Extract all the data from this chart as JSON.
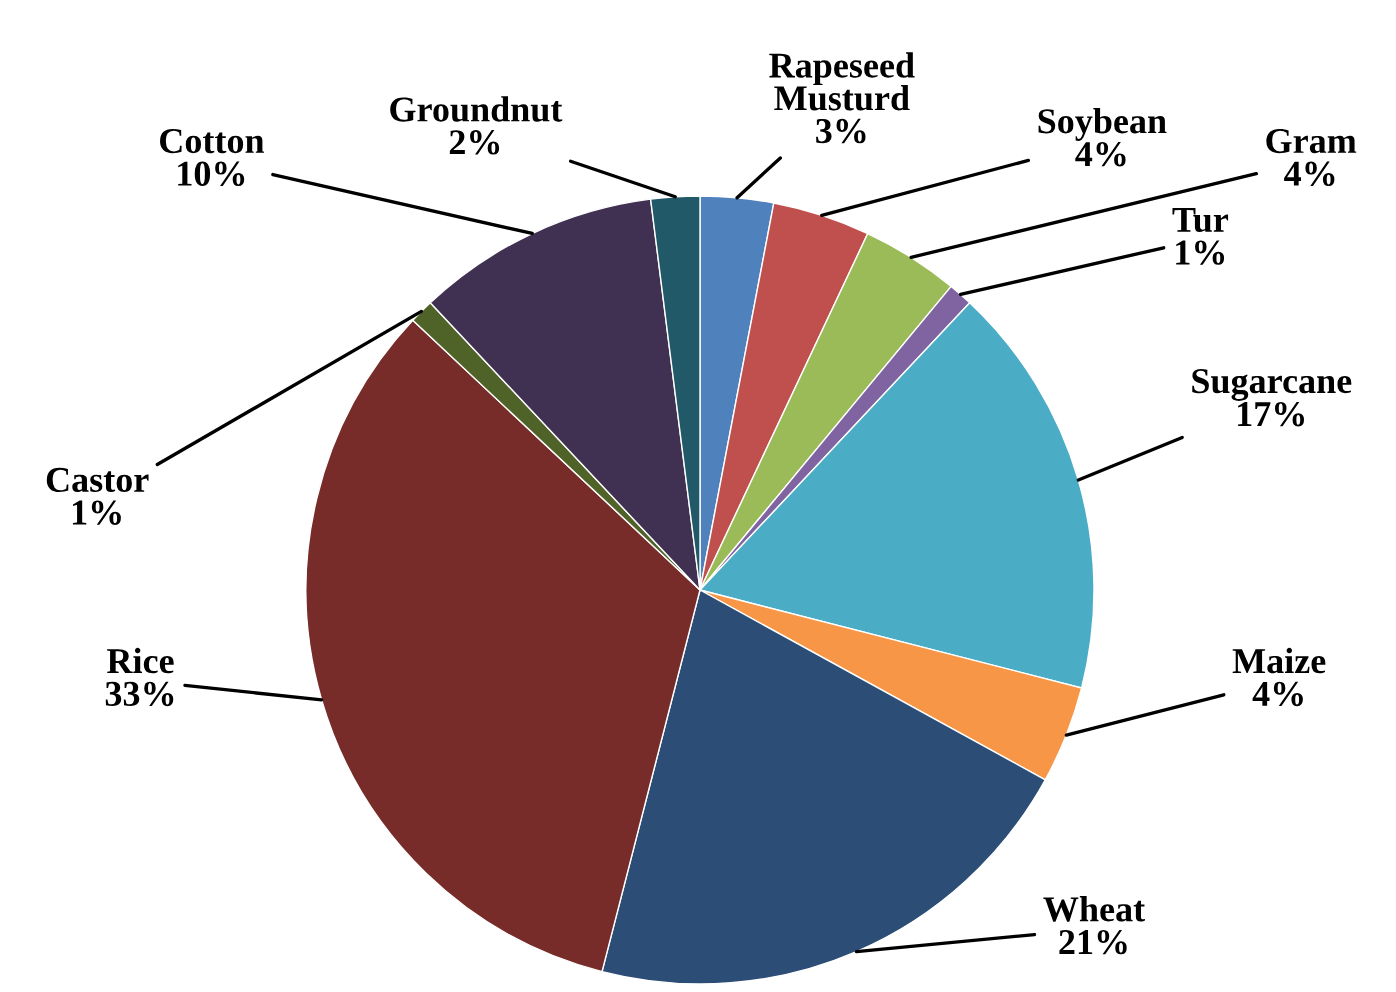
{
  "chart_data": {
    "type": "pie",
    "categories": [
      "Rapeseed\nMusturd",
      "Soybean",
      "Gram",
      "Tur",
      "Sugarcane",
      "Maize",
      "Wheat",
      "Rice",
      "Castor",
      "Cotton",
      "Groundnut"
    ],
    "values": [
      3,
      4,
      4,
      1,
      17,
      4,
      21,
      33,
      1,
      10,
      2
    ],
    "value_labels": [
      "3%",
      "4%",
      "4%",
      "1%",
      "17%",
      "4%",
      "21%",
      "33%",
      "1%",
      "10%",
      "2%"
    ],
    "colors": [
      "#4f81bd",
      "#c0504d",
      "#9bbb59",
      "#8064a2",
      "#4bacc6",
      "#f79646",
      "#2c4d75",
      "#772c2a",
      "#4f6228",
      "#403152",
      "#215968"
    ]
  }
}
